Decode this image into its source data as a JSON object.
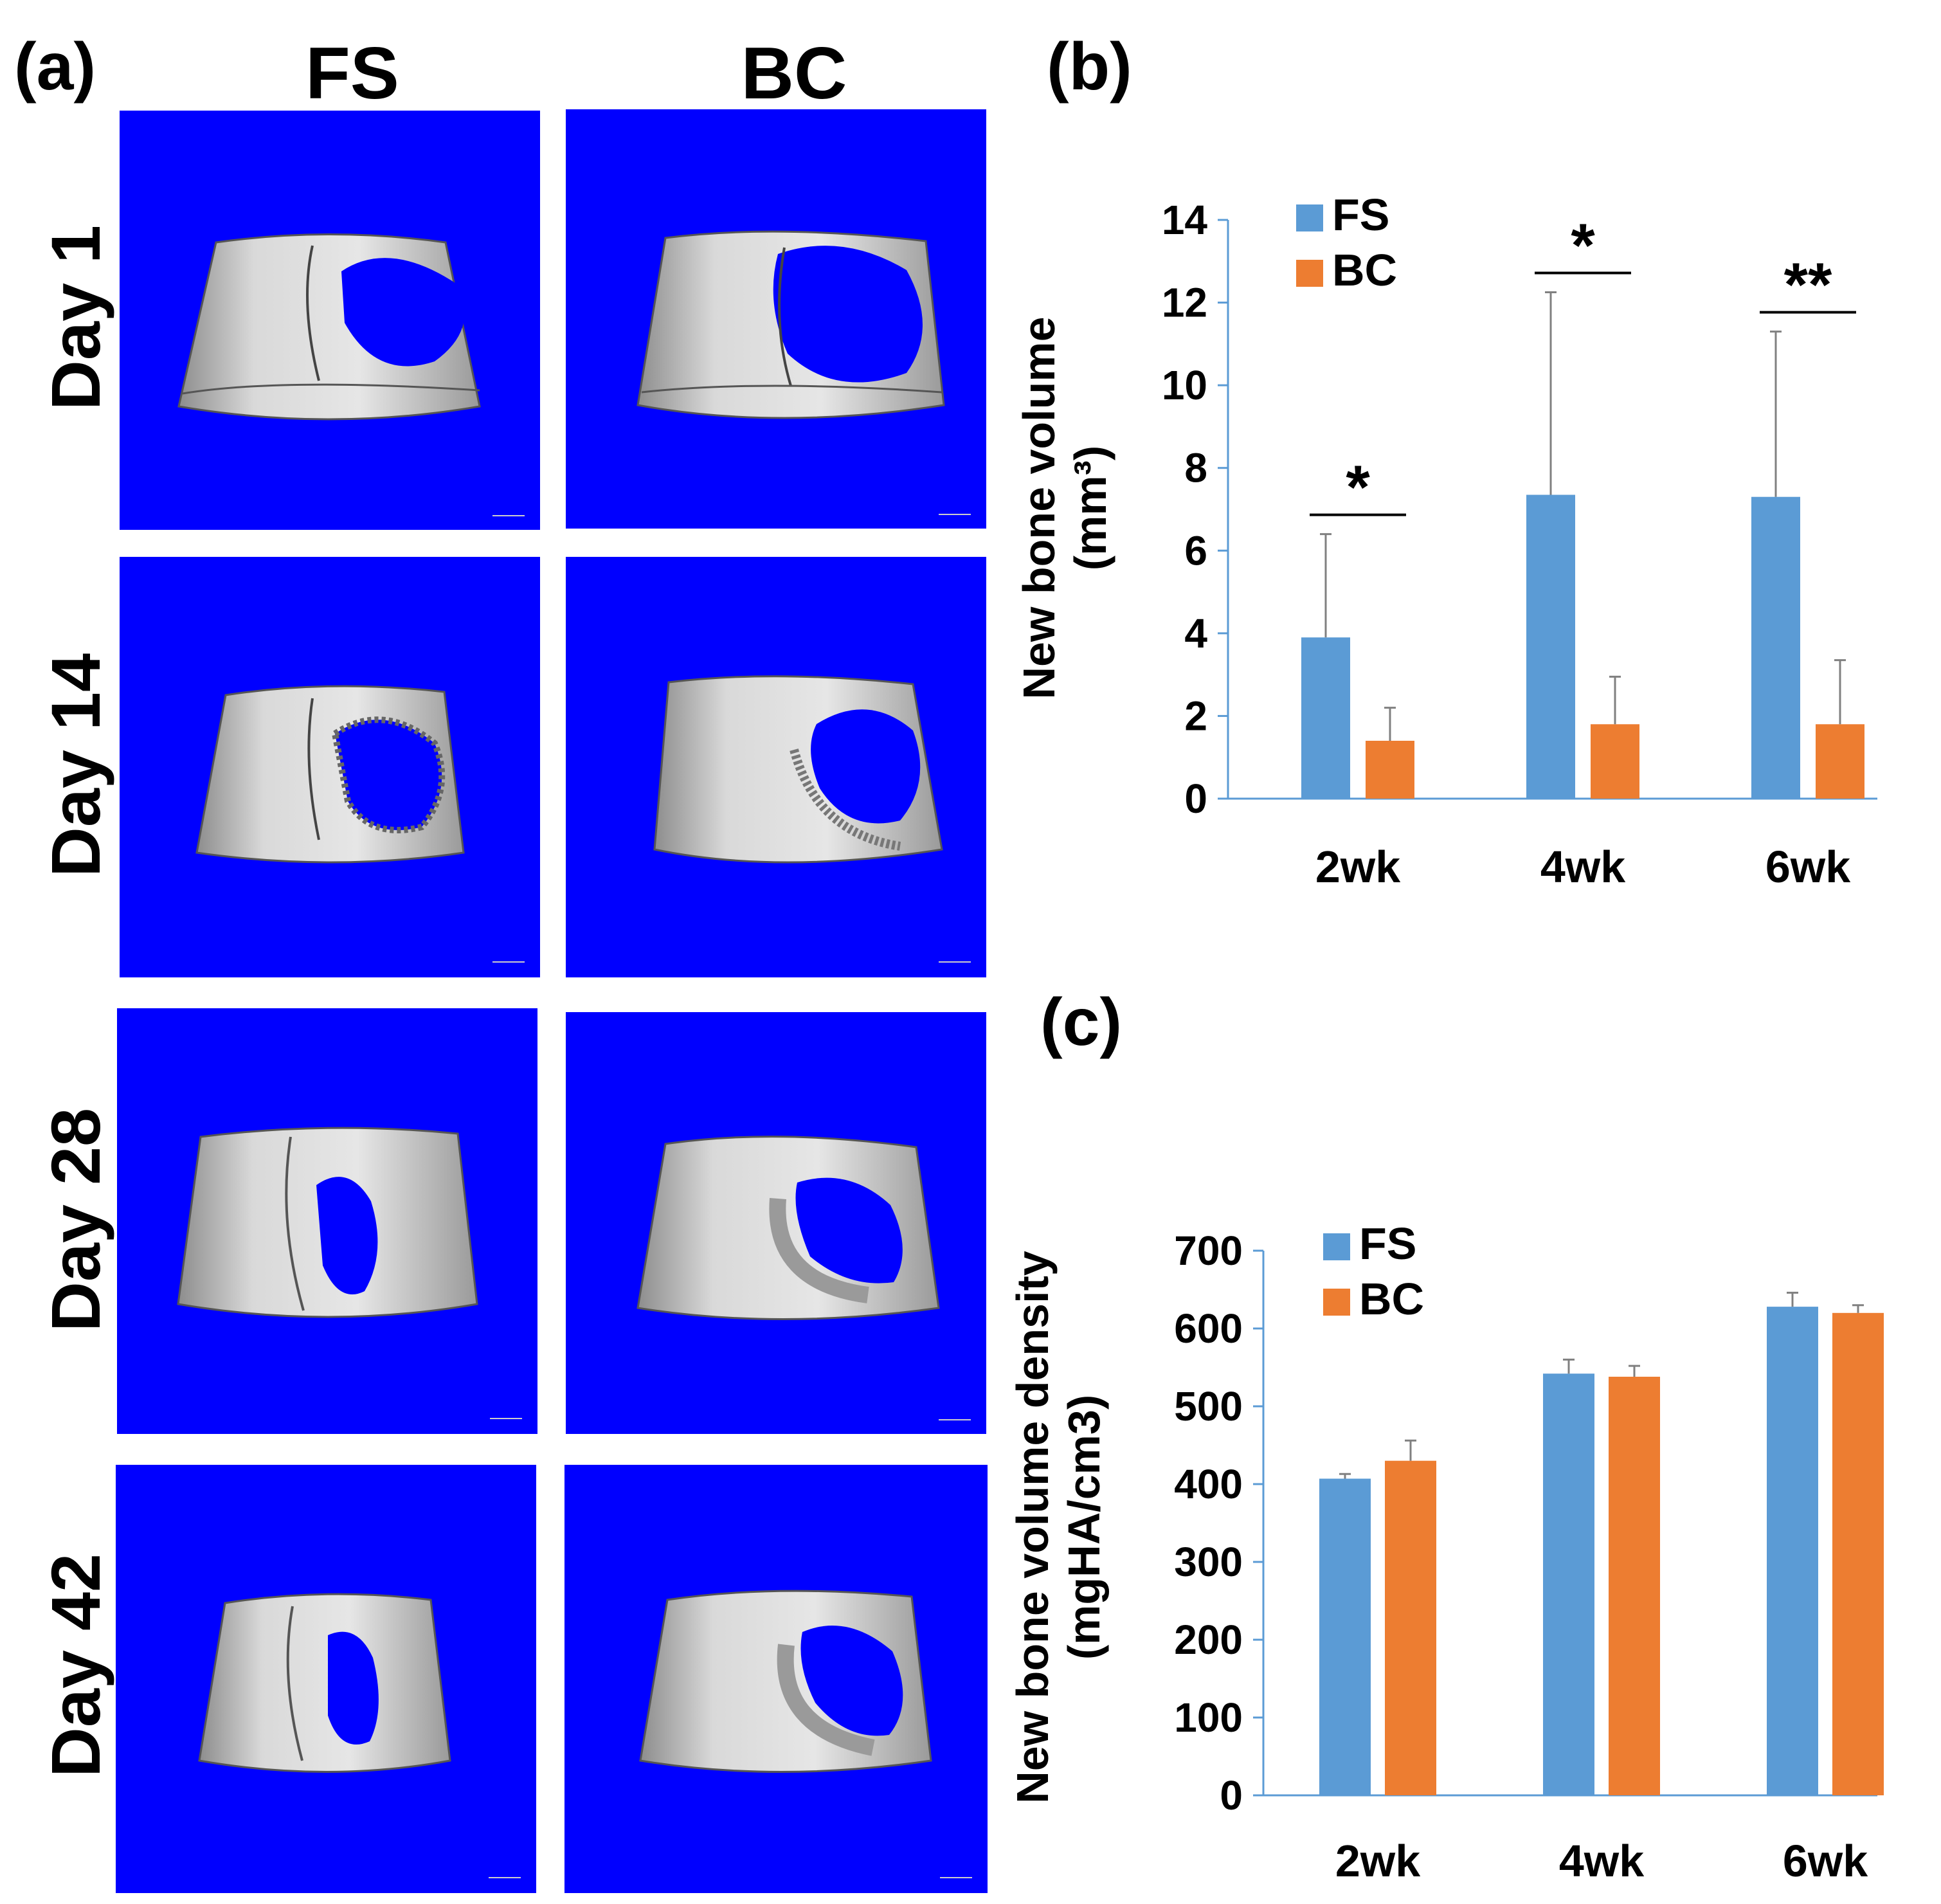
{
  "colors": {
    "fs": "#5b9bd5",
    "bc": "#ed7d31",
    "panel_bg": "#0000ff",
    "bone": "#c8c8c8"
  },
  "panel_a": {
    "label": "(a)",
    "columns": [
      "FS",
      "BC"
    ],
    "rows": [
      "Day 1",
      "Day 14",
      "Day 28",
      "Day 42"
    ]
  },
  "chart_data": [
    {
      "id": "b",
      "label": "(b)",
      "type": "bar",
      "categories": [
        "2wk",
        "4wk",
        "6wk"
      ],
      "series": [
        {
          "name": "FS",
          "values": [
            3.9,
            7.35,
            7.3
          ],
          "errors": [
            2.5,
            4.9,
            4.0
          ]
        },
        {
          "name": "BC",
          "values": [
            1.4,
            1.8,
            1.8
          ],
          "errors": [
            0.8,
            1.15,
            1.55
          ]
        }
      ],
      "ylabel_line1": "New  bone volume",
      "ylabel_line2": "(mm³)",
      "ylim": [
        0,
        14
      ],
      "yticks": [
        "0",
        "2",
        "4",
        "6",
        "8",
        "10",
        "12",
        "14"
      ],
      "significance": [
        "*",
        "*",
        "**"
      ],
      "legend": "top-left"
    },
    {
      "id": "c",
      "label": "(c)",
      "type": "bar",
      "categories": [
        "2wk",
        "4wk",
        "6wk"
      ],
      "series": [
        {
          "name": "FS",
          "values": [
            407,
            542,
            628
          ],
          "errors": [
            6,
            18,
            18
          ]
        },
        {
          "name": "BC",
          "values": [
            430,
            538,
            620
          ],
          "errors": [
            26,
            14,
            10
          ]
        }
      ],
      "ylabel_line1": "New bone volume density",
      "ylabel_line2": "(mgHA/cm3)",
      "ylim": [
        0,
        700
      ],
      "yticks": [
        "0",
        "100",
        "200",
        "300",
        "400",
        "500",
        "600",
        "700"
      ],
      "legend": "top-left"
    }
  ]
}
